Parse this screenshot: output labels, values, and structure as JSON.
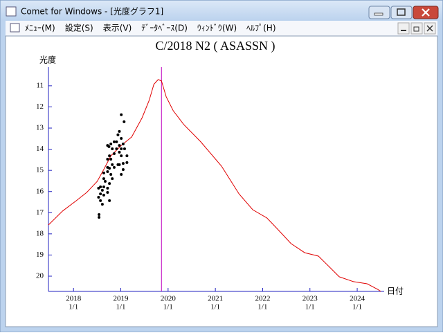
{
  "window": {
    "title": "Comet for Windows - [光度グラフ1]"
  },
  "menu": [
    "ﾒﾆｭｰ(M)",
    "設定(S)",
    "表示(V)",
    "ﾃﾞｰﾀﾍﾞｰｽ(D)",
    "ｳｨﾝﾄﾞｳ(W)",
    "ﾍﾙﾌﾟ(H)"
  ],
  "chart_data": {
    "type": "line",
    "title": "C/2018 N2 ( ASASSN )",
    "ylabel": "光度",
    "xlabel": "日付",
    "xlim": [
      2017.47,
      2024.57
    ],
    "ylim": [
      10.12,
      20.72
    ],
    "y_inverted": true,
    "xticks": [
      {
        "value": 2018,
        "label": [
          "2018",
          "1/1"
        ]
      },
      {
        "value": 2019,
        "label": [
          "2019",
          "1/1"
        ]
      },
      {
        "value": 2020,
        "label": [
          "2020",
          "1/1"
        ]
      },
      {
        "value": 2021,
        "label": [
          "2021",
          "1/1"
        ]
      },
      {
        "value": 2022,
        "label": [
          "2022",
          "1/1"
        ]
      },
      {
        "value": 2023,
        "label": [
          "2023",
          "1/1"
        ]
      },
      {
        "value": 2024,
        "label": [
          "2024",
          "1/1"
        ]
      }
    ],
    "yticks": [
      11,
      12,
      13,
      14,
      15,
      16,
      17,
      18,
      19,
      20
    ],
    "vline": {
      "x": 2019.86,
      "color": "#c000c0"
    },
    "series": [
      {
        "type": "line",
        "color": "#e00000",
        "x": [
          2017.47,
          2017.77,
          2018.06,
          2018.28,
          2018.5,
          2018.64,
          2018.79,
          2019.01,
          2019.23,
          2019.45,
          2019.6,
          2019.7,
          2019.79,
          2019.86,
          2019.96,
          2020.11,
          2020.33,
          2020.69,
          2021.13,
          2021.5,
          2021.79,
          2022.09,
          2022.3,
          2022.6,
          2022.89,
          2023.18,
          2023.4,
          2023.62,
          2023.92,
          2024.21,
          2024.43,
          2024.5
        ],
        "values": [
          17.58,
          16.92,
          16.43,
          16.04,
          15.52,
          14.96,
          14.31,
          13.82,
          13.42,
          12.51,
          11.69,
          10.93,
          10.71,
          10.77,
          11.52,
          12.18,
          12.83,
          13.65,
          14.8,
          16.11,
          16.86,
          17.25,
          17.74,
          18.46,
          18.89,
          19.05,
          19.54,
          20.03,
          20.26,
          20.36,
          20.62,
          20.72
        ]
      },
      {
        "type": "scatter",
        "color": "#000000",
        "x": [
          2019.01,
          2019.07,
          2018.97,
          2018.94,
          2019.01,
          2018.91,
          2018.97,
          2019.05,
          2018.86,
          2018.79,
          2018.75,
          2018.72,
          2018.82,
          2018.91,
          2019.01,
          2019.08,
          2018.97,
          2018.86,
          2018.76,
          2018.72,
          2018.79,
          2019.01,
          2019.13,
          2018.82,
          2018.94,
          2019.05,
          2018.72,
          2018.76,
          2018.86,
          2018.97,
          2018.64,
          2018.72,
          2018.79,
          2018.82,
          2019.01,
          2018.64,
          2018.67,
          2018.76,
          2018.57,
          2018.64,
          2018.72,
          2018.53,
          2018.61,
          2018.57,
          2018.64,
          2018.53,
          2018.57,
          2018.61,
          2018.72,
          2018.76,
          2018.54,
          2018.54,
          2019.13,
          2019.05
        ],
        "values": [
          12.37,
          12.7,
          13.16,
          13.32,
          13.49,
          13.65,
          13.82,
          13.75,
          13.65,
          13.75,
          13.88,
          13.82,
          13.98,
          13.98,
          13.98,
          13.98,
          14.14,
          14.21,
          14.31,
          14.47,
          14.47,
          14.31,
          14.31,
          14.73,
          14.73,
          14.67,
          14.86,
          14.9,
          14.86,
          14.73,
          15.12,
          15.06,
          15.19,
          15.39,
          15.19,
          15.39,
          15.52,
          15.62,
          15.78,
          15.78,
          15.84,
          15.84,
          15.94,
          16.11,
          16.17,
          16.27,
          16.43,
          16.6,
          16.04,
          16.43,
          17.09,
          17.22,
          14.63,
          14.96
        ]
      }
    ]
  }
}
